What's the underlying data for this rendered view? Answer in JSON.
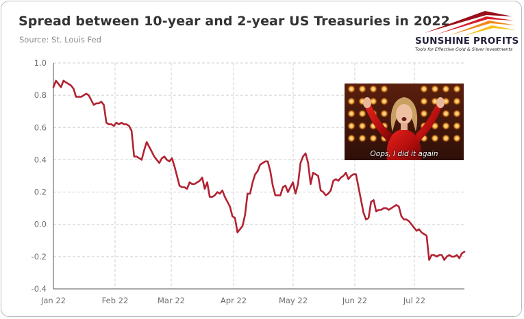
{
  "header": {
    "title": "Spread between 10-year and 2-year US Treasuries in 2022",
    "source": "Source: St. Louis Fed"
  },
  "logo": {
    "name": "SUNSHINE PROFITS",
    "tagline": "Tools for Effective Gold & Silver Investments"
  },
  "meme": {
    "caption": "Oops, I did it again"
  },
  "colors": {
    "series": "#b22232",
    "grid": "#cfcfcf",
    "axis": "#555555"
  },
  "chart_data": {
    "type": "line",
    "title": "Spread between 10-year and 2-year US Treasuries in 2022",
    "xlabel": "",
    "ylabel": "",
    "ylim": [
      -0.4,
      1.0
    ],
    "y_ticks": [
      "1.0",
      "0.8",
      "0.6",
      "0.4",
      "0.2",
      "0.0",
      "-0.2",
      "-0.4"
    ],
    "x_ticks": [
      "Jan 22",
      "Feb 22",
      "Mar 22",
      "Apr 22",
      "May 22",
      "Jun 22",
      "Jul 22"
    ],
    "grid": true,
    "legend": "none",
    "series": [
      {
        "values": [
          0.85,
          0.89,
          0.87,
          0.85,
          0.89,
          0.88,
          0.87,
          0.86,
          0.84,
          0.79,
          0.79,
          0.79,
          0.8,
          0.81,
          0.8,
          0.77,
          0.74,
          0.75,
          0.75,
          0.76,
          0.74,
          0.63,
          0.62,
          0.62,
          0.61,
          0.63,
          0.62,
          0.63,
          0.62,
          0.62,
          0.61,
          0.58,
          0.42,
          0.42,
          0.41,
          0.4,
          0.46,
          0.51,
          0.48,
          0.45,
          0.42,
          0.4,
          0.38,
          0.41,
          0.42,
          0.4,
          0.39,
          0.41,
          0.36,
          0.3,
          0.24,
          0.23,
          0.23,
          0.22,
          0.26,
          0.25,
          0.25,
          0.26,
          0.27,
          0.29,
          0.22,
          0.26,
          0.17,
          0.17,
          0.18,
          0.2,
          0.19,
          0.21,
          0.17,
          0.14,
          0.11,
          0.05,
          0.04,
          -0.05,
          -0.03,
          -0.01,
          0.06,
          0.19,
          0.19,
          0.26,
          0.31,
          0.33,
          0.37,
          0.38,
          0.39,
          0.39,
          0.33,
          0.24,
          0.18,
          0.18,
          0.18,
          0.23,
          0.24,
          0.2,
          0.23,
          0.26,
          0.19,
          0.25,
          0.38,
          0.42,
          0.44,
          0.38,
          0.25,
          0.32,
          0.31,
          0.3,
          0.21,
          0.2,
          0.18,
          0.19,
          0.21,
          0.27,
          0.28,
          0.27,
          0.29,
          0.3,
          0.32,
          0.28,
          0.3,
          0.31,
          0.31,
          0.23,
          0.15,
          0.07,
          0.03,
          0.04,
          0.14,
          0.15,
          0.08,
          0.09,
          0.09,
          0.1,
          0.1,
          0.09,
          0.1,
          0.11,
          0.12,
          0.11,
          0.05,
          0.03,
          0.03,
          0.02,
          0.0,
          -0.02,
          -0.04,
          -0.03,
          -0.05,
          -0.06,
          -0.07,
          -0.22,
          -0.19,
          -0.19,
          -0.2,
          -0.19,
          -0.19,
          -0.22,
          -0.2,
          -0.19,
          -0.2,
          -0.2,
          -0.19,
          -0.21,
          -0.18,
          -0.17
        ]
      }
    ]
  }
}
